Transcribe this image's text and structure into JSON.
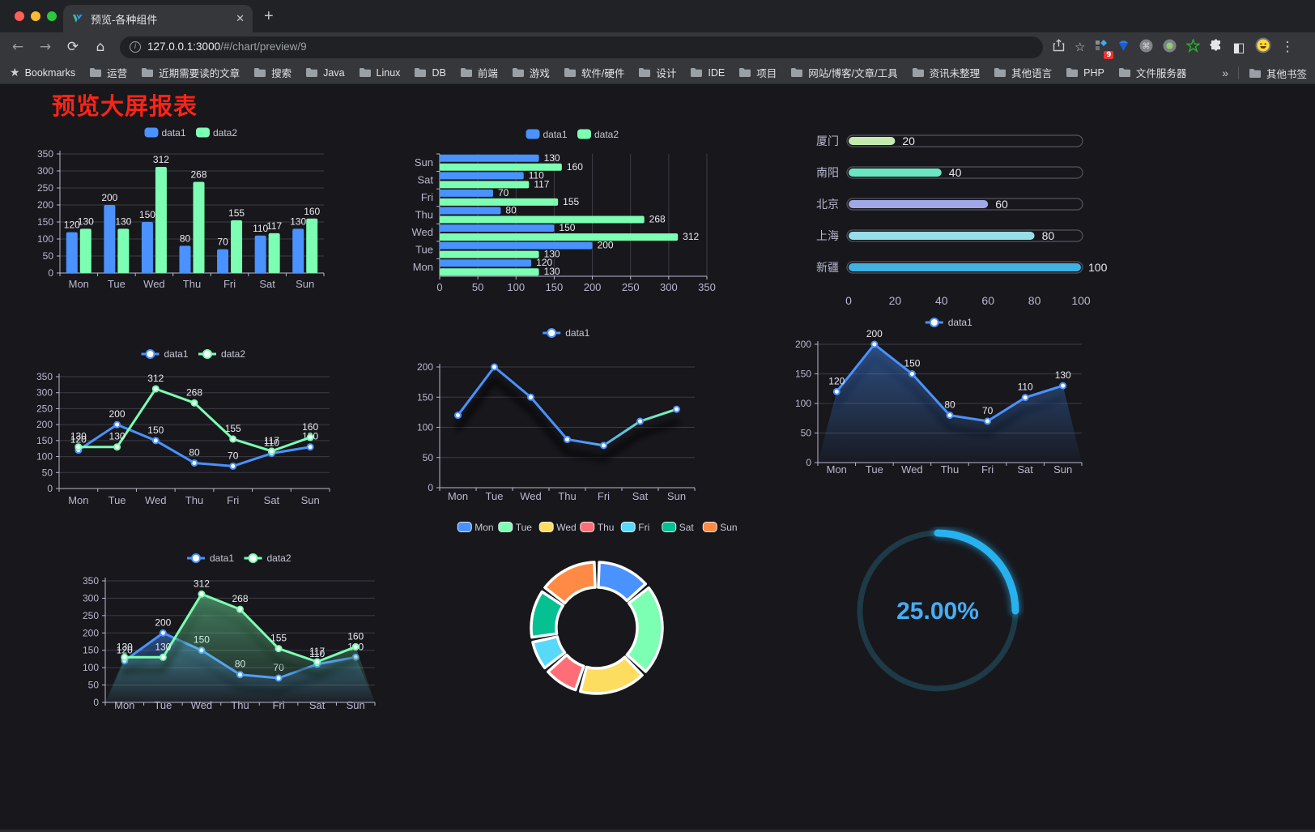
{
  "browser": {
    "tab": {
      "title": "预览-各种组件",
      "close_glyph": "✕",
      "new_tab_glyph": "+"
    },
    "nav": {
      "back_glyph": "←",
      "forward_glyph": "→",
      "reload_glyph": "⟳",
      "home_glyph": "⌂"
    },
    "url": {
      "host": "127.0.0.1:3000",
      "path": "/#/chart/preview/9"
    },
    "actions": {
      "bookmark_star_glyph": "☆",
      "menu_glyph": "⋮",
      "extension_badge": "9",
      "halftone_glyph": "◧",
      "command_glyph": "⌘"
    },
    "bookmarks": {
      "star_glyph": "★",
      "label": "Bookmarks",
      "items": [
        "运营",
        "近期需要读的文章",
        "搜索",
        "Java",
        "Linux",
        "DB",
        "前端",
        "游戏",
        "软件/硬件",
        "设计",
        "IDE",
        "项目",
        "网站/博客/文章/工具",
        "资讯未整理",
        "其他语言",
        "PHP",
        "文件服务器"
      ],
      "overflow_glyph": "»",
      "other_label": "其他书签"
    }
  },
  "page": {
    "title": "预览大屏报表"
  },
  "colors": {
    "page_bg": "#17171c",
    "title_red": "#fb2416",
    "axis_text": "#b9b8ce",
    "grid_line": "#3c3c46",
    "data_label": "#e9e9f0",
    "series_blue": "#4992ff",
    "series_green": "#7cffb2"
  },
  "chart_data": [
    {
      "id": "grouped-bar",
      "type": "bar",
      "legend_position": "top",
      "categories": [
        "Mon",
        "Tue",
        "Wed",
        "Thu",
        "Fri",
        "Sat",
        "Sun"
      ],
      "series": [
        {
          "name": "data1",
          "color": "#4992ff",
          "values": [
            120,
            200,
            150,
            80,
            70,
            110,
            130
          ]
        },
        {
          "name": "data2",
          "color": "#7cffb2",
          "values": [
            130,
            130,
            312,
            268,
            155,
            117,
            160
          ]
        }
      ],
      "ylim": [
        0,
        350
      ],
      "yticks": [
        0,
        50,
        100,
        150,
        200,
        250,
        300,
        350
      ],
      "grid": true,
      "data_labels": true
    },
    {
      "id": "grouped-hbar",
      "type": "bar",
      "orientation": "horizontal",
      "legend_position": "top",
      "categories": [
        "Mon",
        "Tue",
        "Wed",
        "Thu",
        "Fri",
        "Sat",
        "Sun"
      ],
      "series": [
        {
          "name": "data1",
          "color": "#4992ff",
          "values": [
            120,
            200,
            150,
            80,
            70,
            110,
            130
          ]
        },
        {
          "name": "data2",
          "color": "#7cffb2",
          "values": [
            130,
            130,
            312,
            268,
            155,
            117,
            160
          ]
        }
      ],
      "xlim": [
        0,
        350
      ],
      "xticks": [
        0,
        50,
        100,
        150,
        200,
        250,
        300,
        350
      ],
      "grid": true,
      "data_labels": true
    },
    {
      "id": "city-progress",
      "type": "bar",
      "orientation": "horizontal",
      "style": "capsule",
      "categories": [
        "厦门",
        "南阳",
        "北京",
        "上海",
        "新疆"
      ],
      "values": [
        20,
        40,
        60,
        80,
        100
      ],
      "colors": [
        "#c4ebad",
        "#6be6c1",
        "#a0a7e6",
        "#96dee8",
        "#3fb1e3"
      ],
      "xlim": [
        0,
        100
      ],
      "xticks": [
        0,
        20,
        40,
        60,
        80,
        100
      ],
      "grid": false,
      "data_labels": true
    },
    {
      "id": "two-series-line",
      "type": "line",
      "legend_position": "top",
      "categories": [
        "Mon",
        "Tue",
        "Wed",
        "Thu",
        "Fri",
        "Sat",
        "Sun"
      ],
      "series": [
        {
          "name": "data1",
          "color": "#4992ff",
          "values": [
            120,
            200,
            150,
            80,
            70,
            110,
            130
          ]
        },
        {
          "name": "data2",
          "color": "#7cffb2",
          "values": [
            130,
            130,
            312,
            268,
            155,
            117,
            160
          ]
        }
      ],
      "ylim": [
        0,
        350
      ],
      "yticks": [
        0,
        50,
        100,
        150,
        200,
        250,
        300,
        350
      ],
      "grid": true,
      "data_labels": true
    },
    {
      "id": "gradient-line",
      "type": "line",
      "legend_position": "top",
      "categories": [
        "Mon",
        "Tue",
        "Wed",
        "Thu",
        "Fri",
        "Sat",
        "Sun"
      ],
      "series": [
        {
          "name": "data1",
          "color": "#4992ff",
          "color_gradient": [
            "#4992ff",
            "#7cffb2"
          ],
          "values": [
            120,
            200,
            150,
            80,
            70,
            110,
            130
          ]
        }
      ],
      "ylim": [
        0,
        200
      ],
      "yticks": [
        0,
        50,
        100,
        150,
        200
      ],
      "grid": true,
      "data_labels": false,
      "shadow": true
    },
    {
      "id": "single-area",
      "type": "area",
      "legend_position": "top",
      "categories": [
        "Mon",
        "Tue",
        "Wed",
        "Thu",
        "Fri",
        "Sat",
        "Sun"
      ],
      "series": [
        {
          "name": "data1",
          "color": "#4992ff",
          "values": [
            120,
            200,
            150,
            80,
            70,
            110,
            130
          ]
        }
      ],
      "ylim": [
        0,
        200
      ],
      "yticks": [
        0,
        50,
        100,
        150,
        200
      ],
      "grid": true,
      "data_labels": true,
      "shadow": true
    },
    {
      "id": "two-series-area",
      "type": "area",
      "legend_position": "top",
      "categories": [
        "Mon",
        "Tue",
        "Wed",
        "Thu",
        "Fri",
        "Sat",
        "Sun"
      ],
      "series": [
        {
          "name": "data1",
          "color": "#4992ff",
          "values": [
            120,
            200,
            150,
            80,
            70,
            110,
            130
          ]
        },
        {
          "name": "data2",
          "color": "#7cffb2",
          "values": [
            130,
            130,
            312,
            268,
            155,
            117,
            160
          ]
        }
      ],
      "ylim": [
        0,
        350
      ],
      "yticks": [
        0,
        50,
        100,
        150,
        200,
        250,
        300,
        350
      ],
      "grid": true,
      "data_labels": true,
      "shadow": true
    },
    {
      "id": "weekday-donut",
      "type": "pie",
      "subtype": "donut",
      "legend_position": "top",
      "categories": [
        "Mon",
        "Tue",
        "Wed",
        "Thu",
        "Fri",
        "Sat",
        "Sun"
      ],
      "values": [
        120,
        200,
        150,
        80,
        70,
        110,
        130
      ],
      "colors": [
        "#4992ff",
        "#7cffb2",
        "#fddd60",
        "#ff6e76",
        "#58d9f9",
        "#05c091",
        "#ff8a45"
      ]
    },
    {
      "id": "percent-gauge",
      "type": "gauge",
      "value": 25,
      "max": 100,
      "label": "25.00%",
      "track_color": "#1d3a46",
      "progress_color": "#27b2ef",
      "text_color": "#45aef5"
    }
  ]
}
